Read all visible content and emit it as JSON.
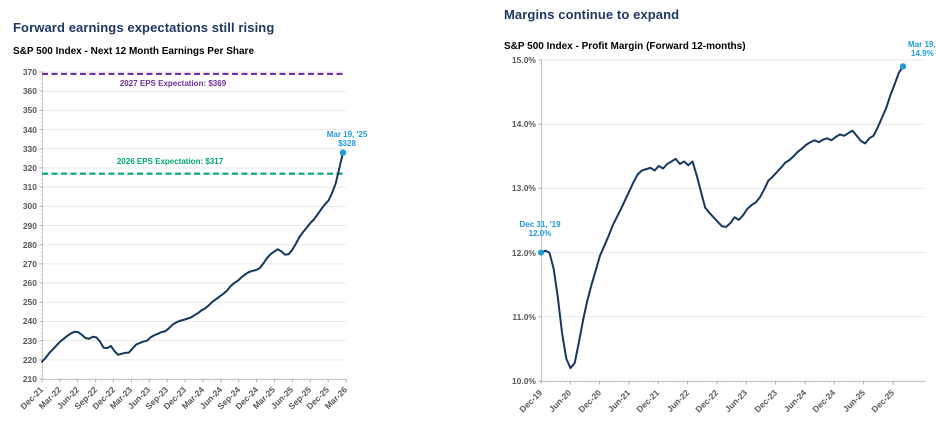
{
  "palette": {
    "title_navy": "#1F3864",
    "subtitle_black": "#000000",
    "axis_label_gray": "#595959",
    "line_navy": "#17375E",
    "gridline": "#E9E9E9",
    "axis_line": "#C6C6C6",
    "major_tick": "#AFAFAF",
    "minor_tick": "#D6D6D6",
    "callout_blue": "#1E9BD9",
    "ref_purple": "#7030A0",
    "ref_green": "#00A572",
    "background": "#FFFFFF"
  },
  "chart_data": [
    {
      "type": "line",
      "title": "Forward earnings expectations still rising",
      "subtitle": "S&P 500 Index - Next 12 Month Earnings Per Share",
      "xlabel": "",
      "ylabel": "",
      "ylim": [
        210,
        370
      ],
      "grid": true,
      "legend": "none",
      "y_ticks": [
        {
          "label": "370",
          "value": 370
        },
        {
          "label": "360",
          "value": 360
        },
        {
          "label": "350",
          "value": 350
        },
        {
          "label": "340",
          "value": 340
        },
        {
          "label": "330",
          "value": 330
        },
        {
          "label": "320",
          "value": 320
        },
        {
          "label": "310",
          "value": 310
        },
        {
          "label": "300",
          "value": 300
        },
        {
          "label": "290",
          "value": 290
        },
        {
          "label": "280",
          "value": 280
        },
        {
          "label": "270",
          "value": 270
        },
        {
          "label": "260",
          "value": 260
        },
        {
          "label": "250",
          "value": 250
        },
        {
          "label": "240",
          "value": 240
        },
        {
          "label": "230",
          "value": 230
        },
        {
          "label": "220",
          "value": 220
        },
        {
          "label": "210",
          "value": 210
        }
      ],
      "x_tick_labels": [
        "Dec-21",
        "Mar-22",
        "Jun-22",
        "Sep-22",
        "Dec-22",
        "Mar-23",
        "Jun-23",
        "Sep-23",
        "Dec-23",
        "Mar-24",
        "Jun-24",
        "Sep-24",
        "Dec-24",
        "Mar-25",
        "Jun-25",
        "Sep-25",
        "Dec-25",
        "Mar-26"
      ],
      "ref_lines": [
        {
          "label": "2027 EPS Expectation: $369",
          "value": 369,
          "color": "#7030A0"
        },
        {
          "label": "2026 EPS Expectation: $317",
          "value": 317,
          "color": "#00A572"
        }
      ],
      "endpoint": {
        "date": "Mar 19, '25",
        "value_label": "$328",
        "value": 328,
        "color": "#1E9BD9"
      },
      "series": [
        {
          "name": "S&P 500 Next 12 Month EPS",
          "color": "#17375E",
          "values": [
            219,
            221,
            223.5,
            225.5,
            227.5,
            229.5,
            231,
            232.5,
            233.8,
            234.6,
            234.4,
            233,
            231.3,
            231,
            232,
            231.7,
            229.5,
            226.3,
            226.1,
            227.2,
            224.5,
            222.6,
            223.2,
            223.6,
            223.8,
            226,
            228,
            228.8,
            229.5,
            230,
            231.8,
            232.8,
            233.6,
            234.5,
            234.9,
            236.4,
            238.3,
            239.5,
            240.3,
            240.8,
            241.4,
            242,
            243.2,
            244.3,
            245.8,
            246.8,
            248.4,
            250.3,
            251.6,
            253,
            254.4,
            256,
            258.4,
            260,
            261.2,
            263,
            264.5,
            265.7,
            266.3,
            266.8,
            267.7,
            270.1,
            272.9,
            275,
            276.4,
            277.6,
            276.5,
            274.8,
            275,
            277.3,
            280.5,
            284,
            286.6,
            288.9,
            291.3,
            293.2,
            295.8,
            298.5,
            301,
            303,
            307,
            312,
            320,
            328
          ]
        }
      ]
    },
    {
      "type": "line",
      "title": "Margins continue to expand",
      "subtitle": "S&P 500 Index - Profit Margin (Forward 12-months)",
      "xlabel": "",
      "ylabel": "",
      "ylim": [
        10.0,
        15.0
      ],
      "grid": true,
      "legend": "none",
      "y_ticks": [
        {
          "label": "15.0%",
          "value": 15.0
        },
        {
          "label": "14.0%",
          "value": 14.0
        },
        {
          "label": "13.0%",
          "value": 13.0
        },
        {
          "label": "12.0%",
          "value": 12.0
        },
        {
          "label": "11.0%",
          "value": 11.0
        },
        {
          "label": "10.0%",
          "value": 10.0
        }
      ],
      "x_tick_labels": [
        "Dec-19",
        "Jun-20",
        "Dec-20",
        "Jun-21",
        "Dec-21",
        "Jun-22",
        "Dec-22",
        "Jun-23",
        "Dec-23",
        "Jun-24",
        "Dec-24",
        "Jun-25",
        "Dec-25"
      ],
      "ref_lines": [],
      "start_point": {
        "date": "Dec 31, '19",
        "value_label": "12.0%",
        "value": 12.0,
        "color": "#1E9BD9"
      },
      "endpoint": {
        "date": "Mar 19, '25",
        "value_label": "14.9%",
        "value": 14.9,
        "color": "#1E9BD9"
      },
      "series": [
        {
          "name": "S&P 500 Forward 12-month Profit Margin",
          "color": "#17375E",
          "values": [
            12.0,
            12.03,
            12.0,
            11.75,
            11.3,
            10.75,
            10.35,
            10.2,
            10.28,
            10.6,
            10.95,
            11.25,
            11.5,
            11.72,
            11.95,
            12.1,
            12.25,
            12.42,
            12.55,
            12.68,
            12.82,
            12.96,
            13.1,
            13.22,
            13.28,
            13.3,
            13.32,
            13.28,
            13.35,
            13.31,
            13.38,
            13.42,
            13.46,
            13.38,
            13.42,
            13.36,
            13.42,
            13.2,
            12.95,
            12.7,
            12.62,
            12.55,
            12.48,
            12.41,
            12.4,
            12.46,
            12.55,
            12.51,
            12.58,
            12.68,
            12.74,
            12.78,
            12.86,
            12.98,
            13.12,
            13.18,
            13.25,
            13.32,
            13.4,
            13.44,
            13.5,
            13.57,
            13.62,
            13.68,
            13.72,
            13.75,
            13.72,
            13.76,
            13.78,
            13.75,
            13.8,
            13.84,
            13.82,
            13.86,
            13.9,
            13.82,
            13.74,
            13.7,
            13.78,
            13.82,
            13.95,
            14.1,
            14.25,
            14.45,
            14.62,
            14.8,
            14.9
          ]
        }
      ]
    }
  ]
}
